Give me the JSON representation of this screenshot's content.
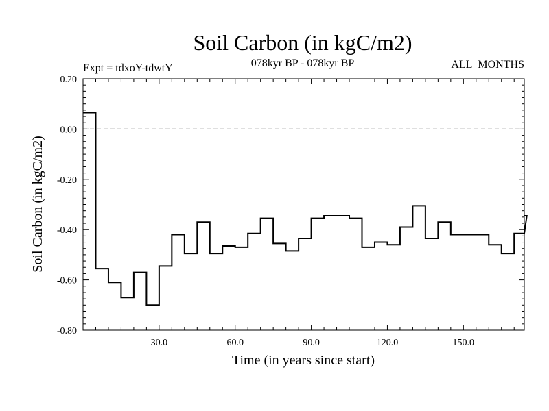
{
  "chart_data": {
    "type": "line",
    "title": "Soil Carbon (in kgC/m2)",
    "subtitle": "078kyr BP - 078kyr BP",
    "expt_label": "Expt = tdxoY-tdwtY",
    "months_label": "ALL_MONTHS",
    "xlabel": "Time (in years since start)",
    "ylabel": "Soil Carbon (in kgC/m2)",
    "xlim": [
      0,
      174
    ],
    "ylim": [
      -0.8,
      0.2
    ],
    "x_ticks": [
      30,
      60,
      90,
      120,
      150
    ],
    "x_tick_labels": [
      "30.0",
      "60.0",
      "90.0",
      "120.0",
      "150.0"
    ],
    "y_ticks": [
      0.2,
      0.0,
      -0.2,
      -0.4,
      -0.6,
      -0.8
    ],
    "y_tick_labels": [
      "0.20",
      "0.00",
      "-0.20",
      "-0.40",
      "-0.60",
      "-0.80"
    ],
    "zero_line": 0.0,
    "series": [
      {
        "name": "Soil Carbon",
        "step_width": 5,
        "x_start": 0,
        "values": [
          0.065,
          -0.555,
          -0.61,
          -0.67,
          -0.57,
          -0.7,
          -0.545,
          -0.42,
          -0.495,
          -0.37,
          -0.495,
          -0.465,
          -0.47,
          -0.415,
          -0.355,
          -0.455,
          -0.485,
          -0.435,
          -0.355,
          -0.345,
          -0.345,
          -0.355,
          -0.47,
          -0.45,
          -0.46,
          -0.39,
          -0.305,
          -0.435,
          -0.37,
          -0.42,
          -0.42,
          -0.42,
          -0.46,
          -0.495,
          -0.415,
          -0.345
        ]
      }
    ]
  }
}
